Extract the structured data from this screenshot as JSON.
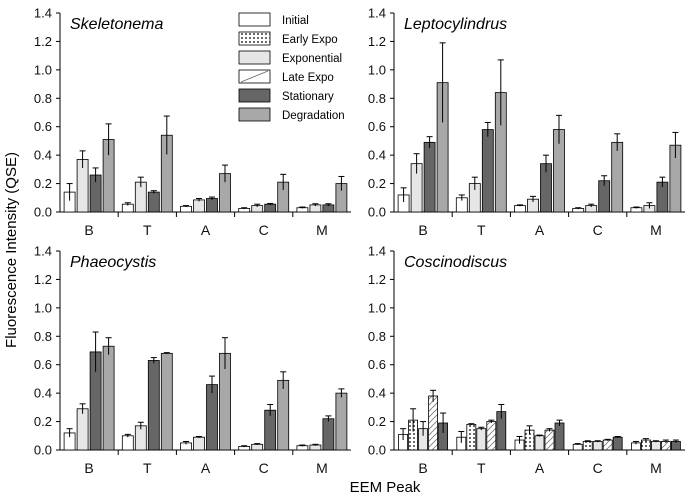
{
  "figure": {
    "ylabel": "Fluorescence Intensity (QSE)",
    "xlabel": "EEM Peak"
  },
  "legend": {
    "entries": [
      {
        "name": "Initial",
        "pattern": "initial"
      },
      {
        "name": "Early Expo",
        "pattern": "early"
      },
      {
        "name": "Exponential",
        "pattern": "expo"
      },
      {
        "name": "Late Expo",
        "pattern": "late"
      },
      {
        "name": "Stationary",
        "pattern": "stat"
      },
      {
        "name": "Degradation",
        "pattern": "degr"
      }
    ]
  },
  "colors": {
    "initial": "#ffffff",
    "early": "#ffffff",
    "expo": "#e6e6e6",
    "late": "#ffffff",
    "stat": "#666666",
    "degr": "#a8a8a8",
    "axis": "#000000"
  },
  "chart_data": [
    {
      "type": "bar",
      "title": "Skeletonema",
      "categories": [
        "B",
        "T",
        "A",
        "C",
        "M"
      ],
      "ylim": [
        0,
        1.4
      ],
      "yticks": [
        "0.0",
        "0.2",
        "0.4",
        "0.6",
        "0.8",
        "1.0",
        "1.2",
        "1.4"
      ],
      "series": [
        {
          "name": "Initial",
          "values": [
            0.14,
            0.055,
            0.04,
            0.025,
            0.03
          ],
          "errors": [
            0.06,
            0.01,
            0.005,
            0.005,
            0.005
          ]
        },
        {
          "name": "Exponential",
          "values": [
            0.37,
            0.21,
            0.085,
            0.045,
            0.05
          ],
          "errors": [
            0.06,
            0.035,
            0.01,
            0.01,
            0.008
          ]
        },
        {
          "name": "Stationary",
          "values": [
            0.26,
            0.14,
            0.095,
            0.055,
            0.05
          ],
          "errors": [
            0.05,
            0.01,
            0.01,
            0.005,
            0.008
          ]
        },
        {
          "name": "Degradation",
          "values": [
            0.51,
            0.54,
            0.27,
            0.21,
            0.2
          ],
          "errors": [
            0.11,
            0.135,
            0.06,
            0.055,
            0.05
          ]
        }
      ]
    },
    {
      "type": "bar",
      "title": "Leptocylindrus",
      "categories": [
        "B",
        "T",
        "A",
        "C",
        "M"
      ],
      "ylim": [
        0,
        1.4
      ],
      "yticks": [
        "0.0",
        "0.2",
        "0.4",
        "0.6",
        "0.8",
        "1.0",
        "1.2",
        "1.4"
      ],
      "series": [
        {
          "name": "Initial",
          "values": [
            0.12,
            0.1,
            0.045,
            0.025,
            0.03
          ],
          "errors": [
            0.05,
            0.02,
            0.005,
            0.005,
            0.005
          ]
        },
        {
          "name": "Exponential",
          "values": [
            0.34,
            0.2,
            0.09,
            0.045,
            0.045
          ],
          "errors": [
            0.07,
            0.045,
            0.02,
            0.01,
            0.02
          ]
        },
        {
          "name": "Stationary",
          "values": [
            0.49,
            0.58,
            0.34,
            0.22,
            0.21
          ],
          "errors": [
            0.04,
            0.05,
            0.06,
            0.035,
            0.035
          ]
        },
        {
          "name": "Degradation",
          "values": [
            0.91,
            0.84,
            0.58,
            0.49,
            0.47
          ],
          "errors": [
            0.28,
            0.23,
            0.1,
            0.06,
            0.09
          ]
        }
      ]
    },
    {
      "type": "bar",
      "title": "Phaeocystis",
      "categories": [
        "B",
        "T",
        "A",
        "C",
        "M"
      ],
      "ylim": [
        0,
        1.4
      ],
      "yticks": [
        "0.0",
        "0.2",
        "0.4",
        "0.6",
        "0.8",
        "1.0",
        "1.2",
        "1.4"
      ],
      "series": [
        {
          "name": "Initial",
          "values": [
            0.12,
            0.1,
            0.05,
            0.025,
            0.03
          ],
          "errors": [
            0.03,
            0.01,
            0.01,
            0.005,
            0.005
          ]
        },
        {
          "name": "Exponential",
          "values": [
            0.29,
            0.17,
            0.09,
            0.04,
            0.035
          ],
          "errors": [
            0.035,
            0.025,
            0.005,
            0.005,
            0.005
          ]
        },
        {
          "name": "Stationary",
          "values": [
            0.69,
            0.63,
            0.46,
            0.28,
            0.22
          ],
          "errors": [
            0.14,
            0.02,
            0.06,
            0.04,
            0.02
          ]
        },
        {
          "name": "Degradation",
          "values": [
            0.73,
            0.68,
            0.68,
            0.49,
            0.4
          ],
          "errors": [
            0.06,
            0.005,
            0.11,
            0.06,
            0.03
          ]
        }
      ]
    },
    {
      "type": "bar",
      "title": "Coscinodiscus",
      "categories": [
        "B",
        "T",
        "A",
        "C",
        "M"
      ],
      "ylim": [
        0,
        1.4
      ],
      "yticks": [
        "0.0",
        "0.2",
        "0.4",
        "0.6",
        "0.8",
        "1.0",
        "1.2",
        "1.4"
      ],
      "series": [
        {
          "name": "Initial",
          "values": [
            0.11,
            0.09,
            0.07,
            0.04,
            0.05
          ],
          "errors": [
            0.04,
            0.04,
            0.025,
            0.005,
            0.01
          ]
        },
        {
          "name": "Early Expo",
          "values": [
            0.21,
            0.18,
            0.14,
            0.06,
            0.07
          ],
          "errors": [
            0.08,
            0.005,
            0.03,
            0.005,
            0.01
          ]
        },
        {
          "name": "Exponential",
          "values": [
            0.15,
            0.15,
            0.1,
            0.06,
            0.06
          ],
          "errors": [
            0.05,
            0.01,
            0.005,
            0.005,
            0.005
          ]
        },
        {
          "name": "Late Expo",
          "values": [
            0.38,
            0.2,
            0.14,
            0.07,
            0.06
          ],
          "errors": [
            0.04,
            0.01,
            0.01,
            0.005,
            0.01
          ]
        },
        {
          "name": "Stationary",
          "values": [
            0.19,
            0.27,
            0.19,
            0.09,
            0.06
          ],
          "errors": [
            0.07,
            0.05,
            0.02,
            0.005,
            0.01
          ]
        }
      ]
    }
  ]
}
